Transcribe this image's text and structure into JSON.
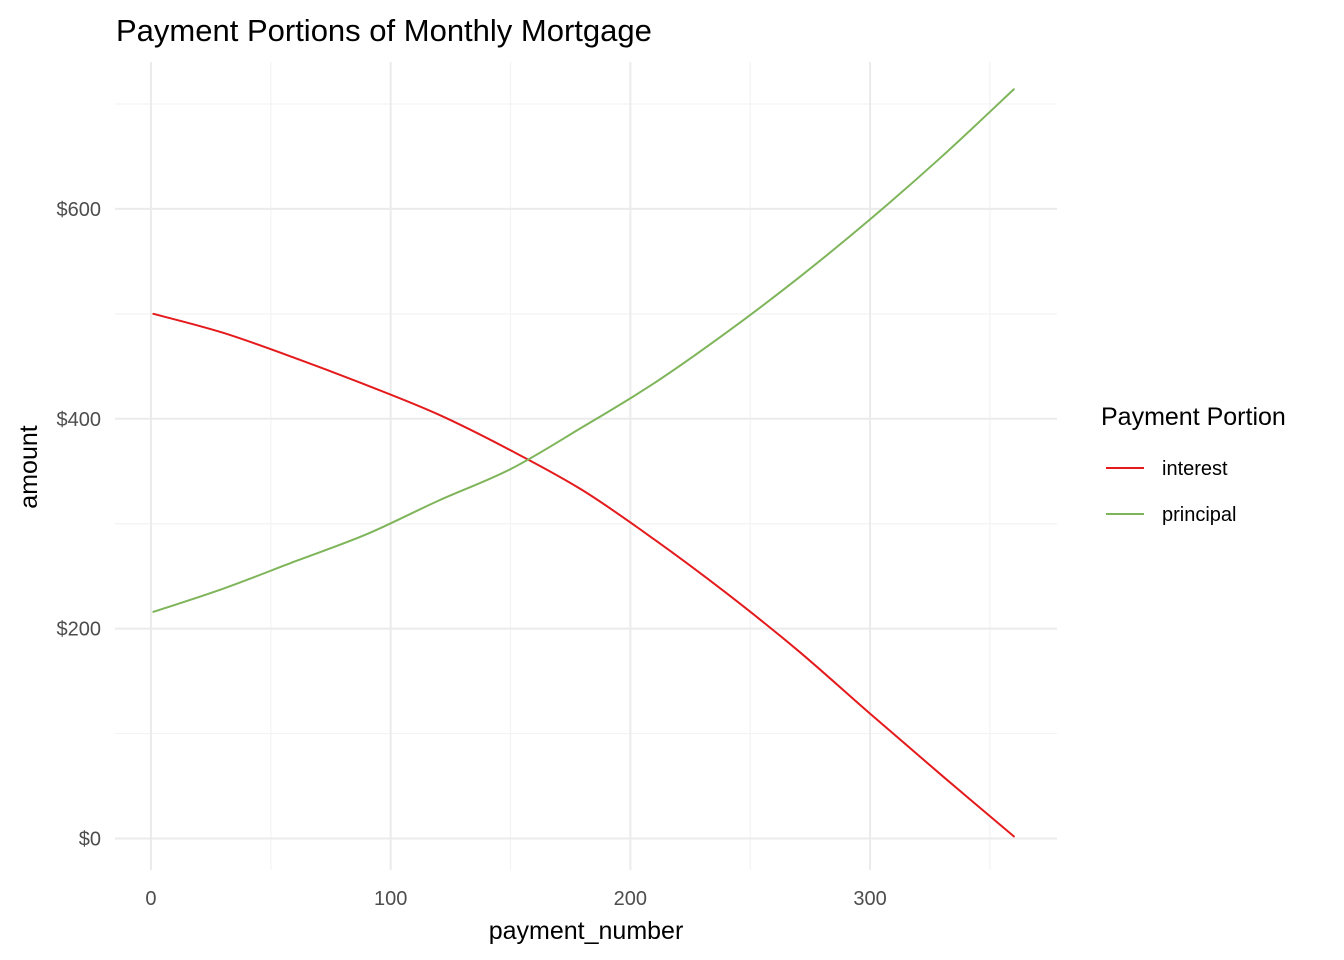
{
  "chart_data": {
    "type": "line",
    "title": "Payment Portions of Monthly Mortgage",
    "xlabel": "payment_number",
    "ylabel": "amount",
    "xlim": [
      -15,
      378
    ],
    "ylim": [
      -30,
      740
    ],
    "x_ticks": [
      0,
      100,
      200,
      300
    ],
    "x_tick_labels": [
      "0",
      "100",
      "200",
      "300"
    ],
    "x_minor_ticks": [
      50,
      150,
      250,
      350
    ],
    "y_ticks": [
      0,
      200,
      400,
      600
    ],
    "y_tick_labels": [
      "$0",
      "$200",
      "$400",
      "$600"
    ],
    "y_minor_ticks": [
      100,
      300,
      500,
      700
    ],
    "grid": true,
    "legend": {
      "title": "Payment Portion",
      "position": "right"
    },
    "series": [
      {
        "name": "interest",
        "color": "#e41a1c",
        "x": [
          1,
          30,
          60,
          90,
          120,
          150,
          180,
          210,
          240,
          270,
          300,
          330,
          360
        ],
        "values": [
          500,
          482,
          458,
          432,
          404,
          370,
          332,
          285,
          234,
          179,
          119,
          60,
          2
        ]
      },
      {
        "name": "principal",
        "color": "#7fb55a",
        "x": [
          1,
          30,
          60,
          90,
          120,
          150,
          180,
          210,
          240,
          270,
          300,
          330,
          360
        ],
        "values": [
          216,
          238,
          264,
          290,
          322,
          352,
          392,
          434,
          482,
          534,
          590,
          650,
          714
        ]
      }
    ]
  }
}
